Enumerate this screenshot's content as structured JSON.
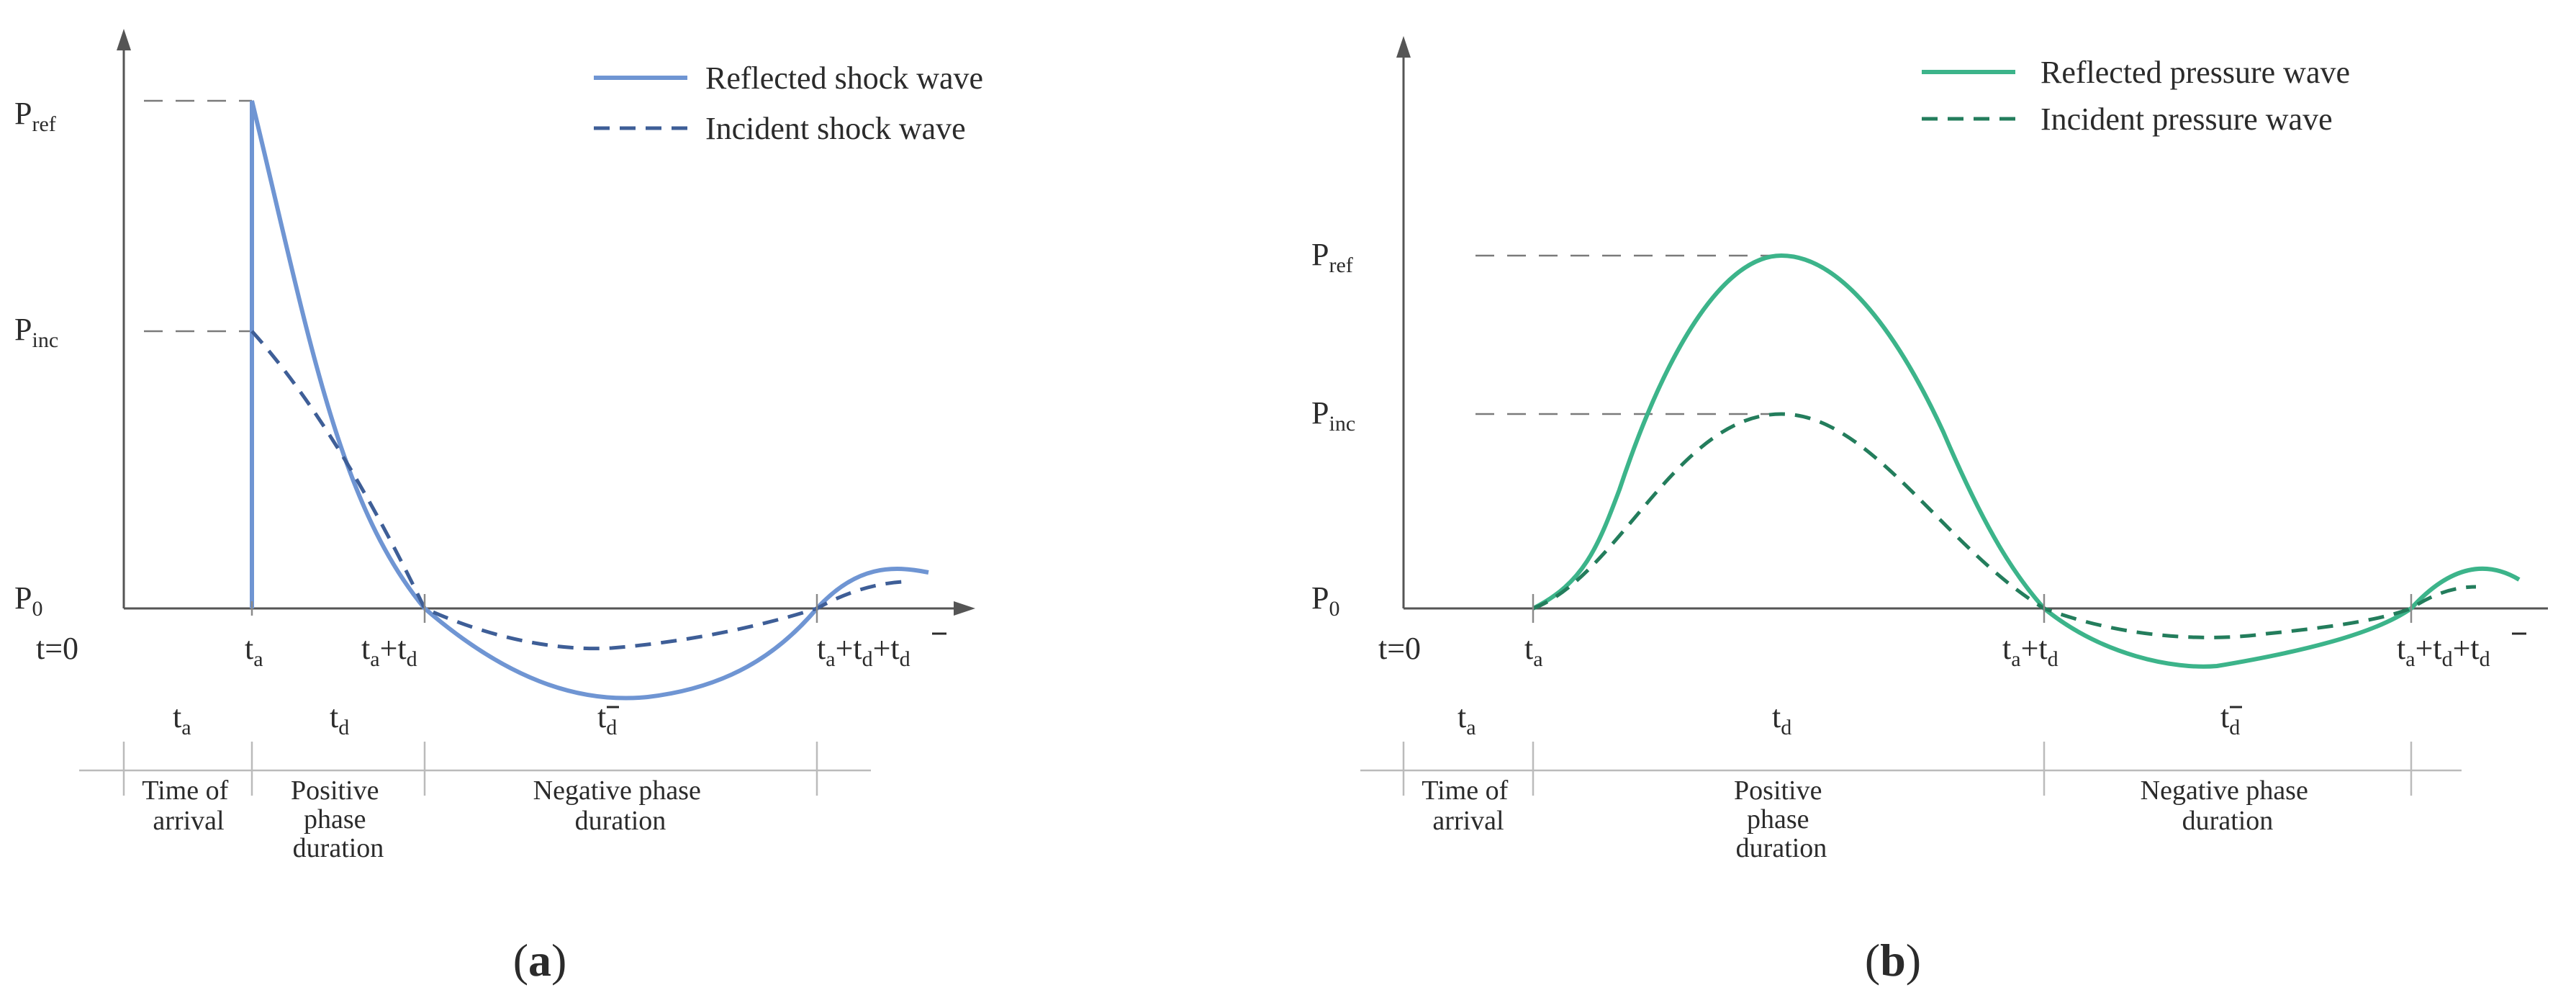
{
  "colors": {
    "panel_a": "#6f95d3",
    "panel_b": "#3cb48a",
    "axis": "#555555"
  },
  "panel_a": {
    "legend": {
      "solid": "Reflected shock wave",
      "dashed": "Incident shock wave"
    },
    "y_labels": {
      "ref_main": "P",
      "ref_sub": "ref",
      "inc_main": "P",
      "inc_sub": "inc",
      "zero_main": "P",
      "zero_sub": "0"
    },
    "x_labels": {
      "t0": "t=0",
      "ta_main": "t",
      "ta_sub": "a",
      "tatd": "t",
      "tatd_sub1": "a",
      "tatd_plus": "+t",
      "tatd_sub2": "d",
      "full": "t",
      "full_sub1": "a",
      "full_p1": "+t",
      "full_sub2": "d",
      "full_p2": "+t",
      "full_sub3": "d"
    },
    "durations": {
      "ta": "t",
      "ta_sub": "a",
      "td": "t",
      "td_sub": "d",
      "tneg": "t",
      "tneg_sub": "d",
      "arrival": [
        "Time of",
        "arrival"
      ],
      "positive": [
        "Positive",
        "phase",
        "duration"
      ],
      "negative": [
        "Negative phase",
        "duration"
      ]
    },
    "caption": {
      "open": "(",
      "letter": "a",
      "close": ")"
    }
  },
  "panel_b": {
    "legend": {
      "solid": "Reflected pressure wave",
      "dashed": "Incident pressure wave"
    },
    "y_labels": {
      "ref_main": "P",
      "ref_sub": "ref",
      "inc_main": "P",
      "inc_sub": "inc",
      "zero_main": "P",
      "zero_sub": "0"
    },
    "x_labels": {
      "t0": "t=0",
      "ta_main": "t",
      "ta_sub": "a",
      "tatd": "t",
      "tatd_sub1": "a",
      "tatd_plus": "+t",
      "tatd_sub2": "d",
      "full": "t",
      "full_sub1": "a",
      "full_p1": "+t",
      "full_sub2": "d",
      "full_p2": "+t",
      "full_sub3": "d"
    },
    "durations": {
      "ta": "t",
      "ta_sub": "a",
      "td": "t",
      "td_sub": "d",
      "tneg": "t",
      "tneg_sub": "d",
      "arrival": [
        "Time of",
        "arrival"
      ],
      "positive": [
        "Positive",
        "phase",
        "duration"
      ],
      "negative": [
        "Negative phase",
        "duration"
      ]
    },
    "caption": {
      "open": "(",
      "letter": "b",
      "close": ")"
    }
  }
}
